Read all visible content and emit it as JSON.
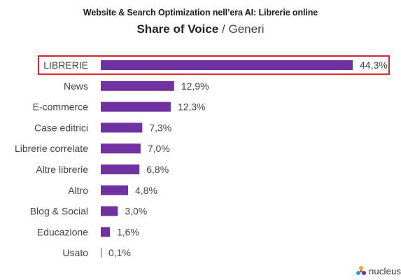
{
  "header": {
    "title": "Website & Search Optimization nell’era AI: Librerie online",
    "subtitle_main": "Share of Voice",
    "subtitle_rest": " / Generi"
  },
  "brand": {
    "logo_text": "nucleus"
  },
  "colors": {
    "bar": "#7032a0",
    "highlight_border": "#d9262c",
    "text": "#444444"
  },
  "chart_data": {
    "type": "bar",
    "orientation": "horizontal",
    "title": "Share of Voice / Generi",
    "categories": [
      "LIBRERIE",
      "News",
      "E-commerce",
      "Case editrici",
      "Librerie correlate",
      "Altre librerie",
      "Altro",
      "Blog & Social",
      "Educazione",
      "Usato"
    ],
    "values": [
      44.3,
      12.9,
      12.3,
      7.3,
      7.0,
      6.8,
      4.8,
      3.0,
      1.6,
      0.1
    ],
    "value_labels": [
      "44,3%",
      "12,9%",
      "12,3%",
      "7,3%",
      "7,0%",
      "6,8%",
      "4,8%",
      "3,0%",
      "1,6%",
      "0,1%"
    ],
    "unit": "%",
    "highlighted_category": "LIBRERIE",
    "grid": false,
    "legend": "none"
  }
}
